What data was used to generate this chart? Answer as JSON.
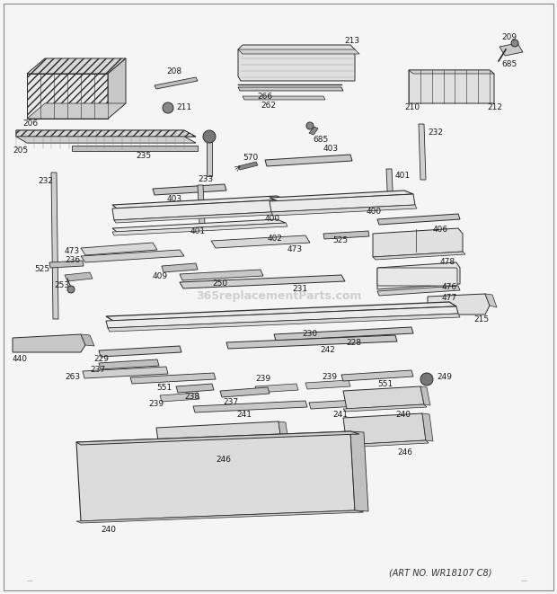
{
  "bg_color": "#f5f5f5",
  "line_color": "#2a2a2a",
  "text_color": "#1a1a1a",
  "art_no": "(ART NO. WR18107 C8)",
  "watermark": "365replacementParts.com",
  "fig_width": 6.2,
  "fig_height": 6.61,
  "dpi": 100,
  "border_color": "#999999",
  "part_label_fontsize": 6.5,
  "watermark_fontsize": 9,
  "watermark_color": "#bbbbbb",
  "shadow_color": "#aaaaaa"
}
